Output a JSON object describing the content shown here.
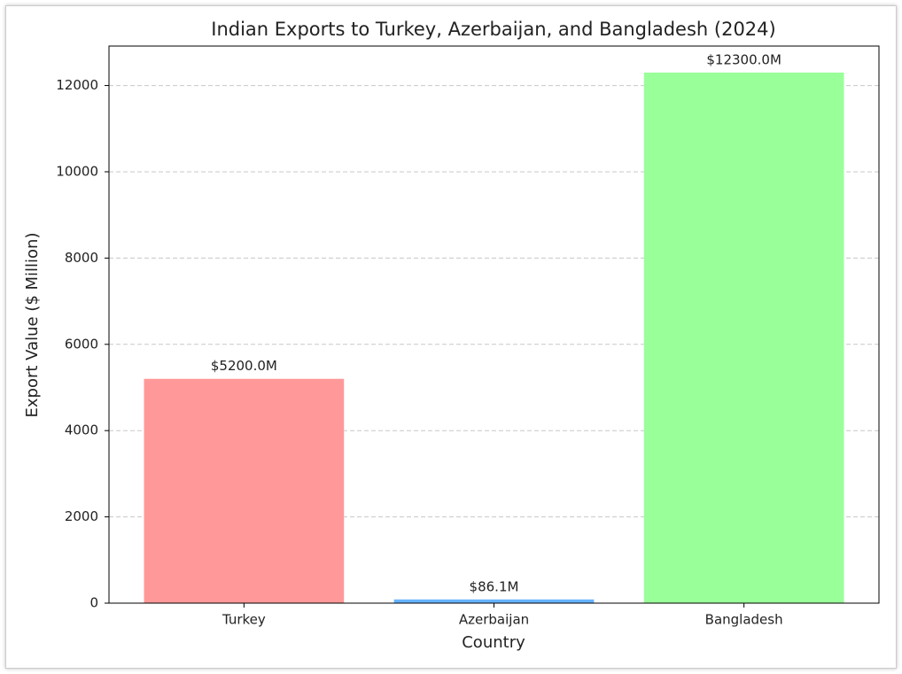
{
  "chart_data": {
    "type": "bar",
    "title": "Indian Exports to Turkey, Azerbaijan, and Bangladesh (2024)",
    "x_label": "Country",
    "y_label": "Export Value ($ Million)",
    "categories": [
      "Turkey",
      "Azerbaijan",
      "Bangladesh"
    ],
    "values": [
      5200,
      86.1,
      12300
    ],
    "value_labels": [
      "$5200.0M",
      "$86.1M",
      "$12300.0M"
    ],
    "colors": [
      "#ff9999",
      "#66b3ff",
      "#99ff99"
    ],
    "ylim": [
      0,
      12915
    ],
    "yticks": [
      0,
      2000,
      4000,
      6000,
      8000,
      10000,
      12000
    ],
    "grid": true
  }
}
